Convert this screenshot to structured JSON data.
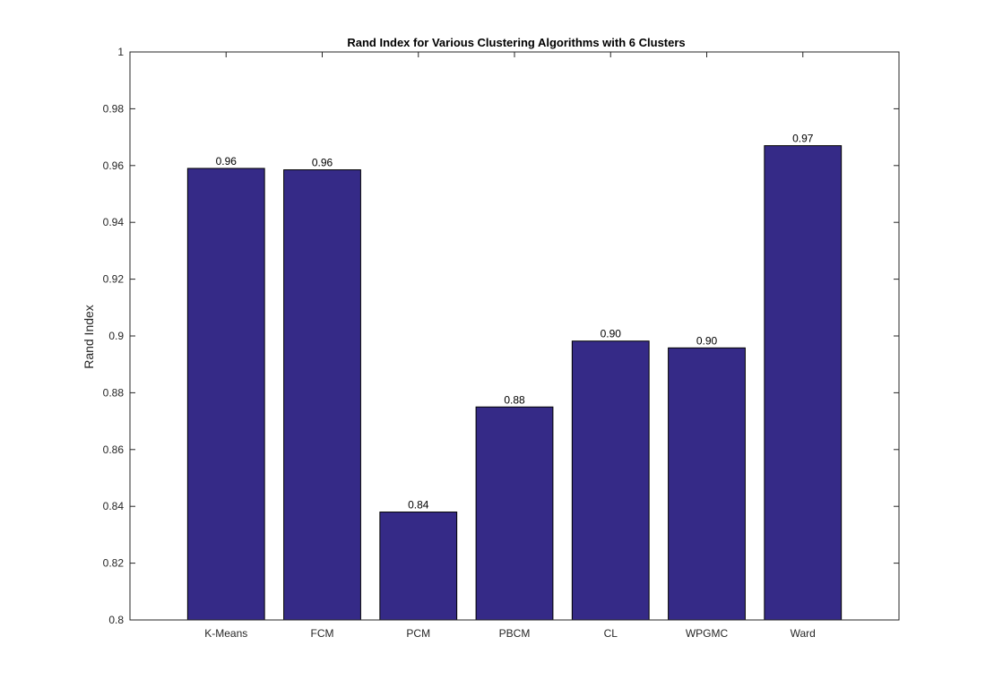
{
  "chart_data": {
    "type": "bar",
    "title": "Rand Index for Various Clustering Algorithms with 6 Clusters",
    "xlabel": "",
    "ylabel": "Rand Index",
    "categories": [
      "K-Means",
      "FCM",
      "PCM",
      "PBCM",
      "CL",
      "WPGMC",
      "Ward"
    ],
    "values": [
      0.959,
      0.9585,
      0.838,
      0.875,
      0.8982,
      0.8958,
      0.967
    ],
    "data_labels": [
      "0.96",
      "0.96",
      "0.84",
      "0.88",
      "0.90",
      "0.90",
      "0.97"
    ],
    "ylim": [
      0.8,
      1.0
    ],
    "yticks": [
      0.8,
      0.82,
      0.84,
      0.86,
      0.88,
      0.9,
      0.92,
      0.94,
      0.96,
      0.98,
      1
    ],
    "ytick_labels": [
      "0.8",
      "0.82",
      "0.84",
      "0.86",
      "0.88",
      "0.9",
      "0.92",
      "0.94",
      "0.96",
      "0.98",
      "1"
    ],
    "grid": false,
    "legend": false,
    "colors": {
      "bar": "#352a87",
      "bar_edge": "#000000",
      "axis": "#262626"
    }
  }
}
